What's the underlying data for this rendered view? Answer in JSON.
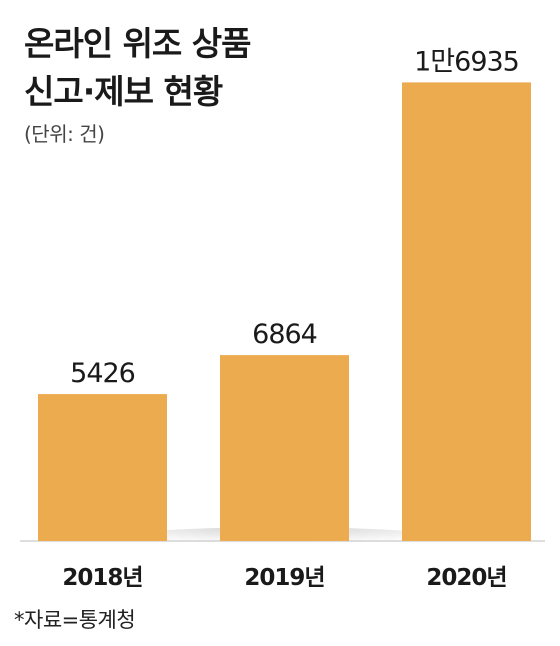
{
  "title_lines": [
    "온라인 위조 상품",
    "신고·제보 현황"
  ],
  "unit": "(단위: 건)",
  "source": "*자료=통계청",
  "colors": {
    "bar": "#EDAB50",
    "text": "#1a1a1a"
  },
  "chart_data": {
    "type": "bar",
    "categories": [
      "2018년",
      "2019년",
      "2020년"
    ],
    "values": [
      5426,
      6864,
      16935
    ],
    "value_labels": [
      "5426",
      "6864",
      "1만6935"
    ],
    "ylim": [
      0,
      18500
    ],
    "grid": false,
    "legend": "none"
  }
}
